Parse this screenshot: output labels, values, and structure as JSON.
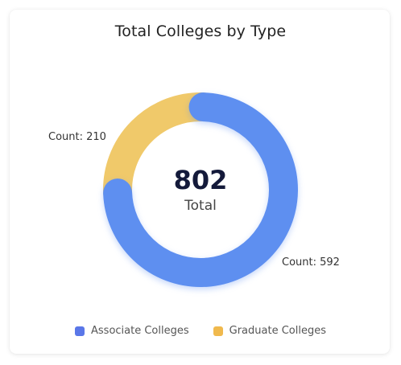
{
  "chart_data": {
    "type": "pie",
    "variant": "donut",
    "title": "Total Colleges by Type",
    "center": {
      "value": "802",
      "label": "Total"
    },
    "categories": [
      "Associate Colleges",
      "Graduate Colleges"
    ],
    "values": [
      592,
      210
    ],
    "data_labels": [
      "Count: 592",
      "Count: 210"
    ],
    "colors": [
      "#5e8ff0",
      "#f0c96a"
    ],
    "legend_colors": [
      "#5a77e8",
      "#f0b94d"
    ],
    "legend_position": "bottom"
  }
}
